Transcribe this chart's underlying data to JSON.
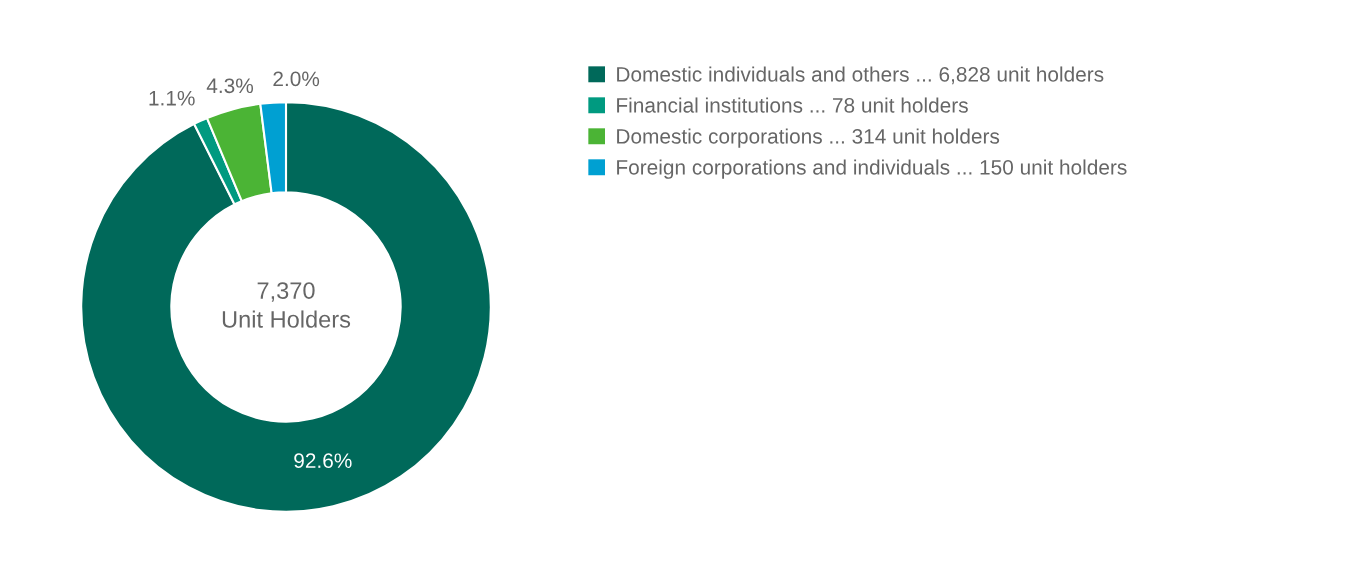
{
  "chart_data": {
    "type": "donut",
    "categories": [
      "Domestic individuals and others ... 6,828 unit holders",
      "Financial institutions ... 78 unit holders",
      "Domestic corporations ... 314 unit holders",
      "Foreign corporations and individuals ... 150 unit holders"
    ],
    "values": [
      92.6,
      1.1,
      4.3,
      2.0
    ],
    "colors": [
      "#00695a",
      "#009a80",
      "#4bb435",
      "#00a0d2"
    ],
    "value_labels": [
      "92.6%",
      "1.1%",
      "4.3%",
      "2.0%"
    ],
    "annotations": [
      "7,370\nUnit Holders"
    ],
    "legend": "top right"
  }
}
